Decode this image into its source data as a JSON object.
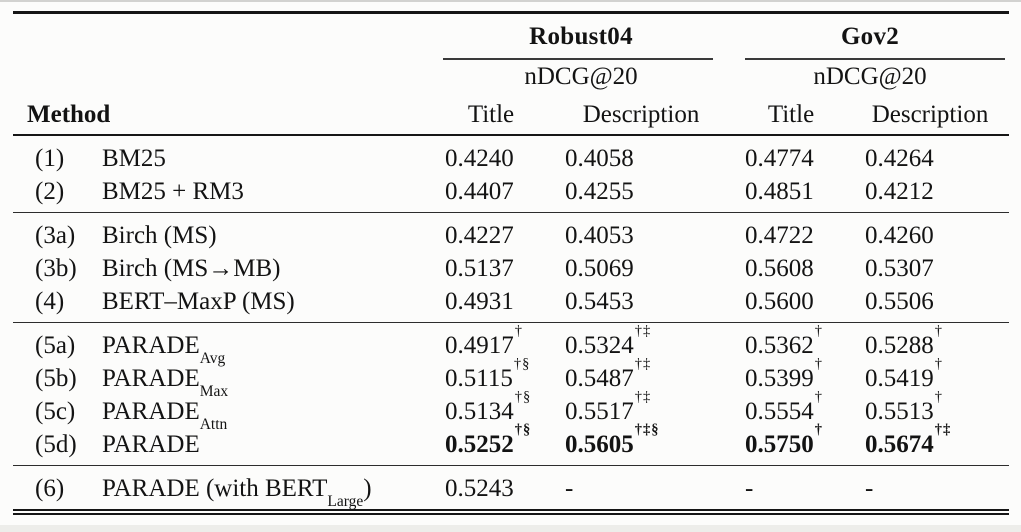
{
  "colors": {
    "background": "#fcfcfb",
    "text": "#131313",
    "rule": "#161616"
  },
  "header": {
    "method_label": "Method",
    "groups": [
      {
        "label": "Robust04",
        "metric": "nDCG@20"
      },
      {
        "label": "Gov2",
        "metric": "nDCG@20"
      }
    ],
    "sub_columns": [
      "Title",
      "Description",
      "Title",
      "Description"
    ]
  },
  "body": {
    "groups": [
      {
        "rows": [
          {
            "id": "(1)",
            "method": [
              {
                "t": "BM25"
              }
            ],
            "cells": [
              {
                "v": "0.4240"
              },
              {
                "v": "0.4058"
              },
              {
                "v": "0.4774"
              },
              {
                "v": "0.4264"
              }
            ]
          },
          {
            "id": "(2)",
            "method": [
              {
                "t": "BM25 + RM3"
              }
            ],
            "cells": [
              {
                "v": "0.4407"
              },
              {
                "v": "0.4255"
              },
              {
                "v": "0.4851"
              },
              {
                "v": "0.4212"
              }
            ]
          }
        ]
      },
      {
        "rows": [
          {
            "id": "(3a)",
            "method": [
              {
                "t": "Birch (MS)"
              }
            ],
            "cells": [
              {
                "v": "0.4227"
              },
              {
                "v": "0.4053"
              },
              {
                "v": "0.4722"
              },
              {
                "v": "0.4260"
              }
            ]
          },
          {
            "id": "(3b)",
            "method": [
              {
                "t": "Birch (MS→MB)"
              }
            ],
            "cells": [
              {
                "v": "0.5137"
              },
              {
                "v": "0.5069"
              },
              {
                "v": "0.5608"
              },
              {
                "v": "0.5307"
              }
            ]
          },
          {
            "id": "(4)",
            "method": [
              {
                "t": "BERT–MaxP (MS)"
              }
            ],
            "cells": [
              {
                "v": "0.4931"
              },
              {
                "v": "0.5453"
              },
              {
                "v": "0.5600"
              },
              {
                "v": "0.5506"
              }
            ]
          }
        ]
      },
      {
        "rows": [
          {
            "id": "(5a)",
            "method": [
              {
                "t": "PARADE"
              },
              {
                "t": "Avg",
                "sub": true
              }
            ],
            "cells": [
              {
                "v": "0.4917",
                "sup": "†"
              },
              {
                "v": "0.5324",
                "sup": "†‡"
              },
              {
                "v": "0.5362",
                "sup": "†"
              },
              {
                "v": "0.5288",
                "sup": "†"
              }
            ]
          },
          {
            "id": "(5b)",
            "method": [
              {
                "t": "PARADE"
              },
              {
                "t": "Max",
                "sub": true
              }
            ],
            "cells": [
              {
                "v": "0.5115",
                "sup": "†§"
              },
              {
                "v": "0.5487",
                "sup": "†‡"
              },
              {
                "v": "0.5399",
                "sup": "†"
              },
              {
                "v": "0.5419",
                "sup": "†"
              }
            ]
          },
          {
            "id": "(5c)",
            "method": [
              {
                "t": "PARADE"
              },
              {
                "t": "Attn",
                "sub": true
              }
            ],
            "cells": [
              {
                "v": "0.5134",
                "sup": "†§"
              },
              {
                "v": "0.5517",
                "sup": "†‡"
              },
              {
                "v": "0.5554",
                "sup": "†"
              },
              {
                "v": "0.5513",
                "sup": "†"
              }
            ]
          },
          {
            "id": "(5d)",
            "method": [
              {
                "t": "PARADE"
              }
            ],
            "cells": [
              {
                "v": "0.5252",
                "sup": "†§",
                "bold": true
              },
              {
                "v": "0.5605",
                "sup": "†‡§",
                "bold": true
              },
              {
                "v": "0.5750",
                "sup": "†",
                "bold": true
              },
              {
                "v": "0.5674",
                "sup": "†‡",
                "bold": true
              }
            ]
          }
        ]
      },
      {
        "rows": [
          {
            "id": "(6)",
            "method": [
              {
                "t": "PARADE (with BERT"
              },
              {
                "t": "Large",
                "sub": true
              },
              {
                "t": ")"
              }
            ],
            "cells": [
              {
                "v": "0.5243"
              },
              {
                "v": "-"
              },
              {
                "v": "-"
              },
              {
                "v": "-"
              }
            ]
          }
        ]
      }
    ]
  }
}
